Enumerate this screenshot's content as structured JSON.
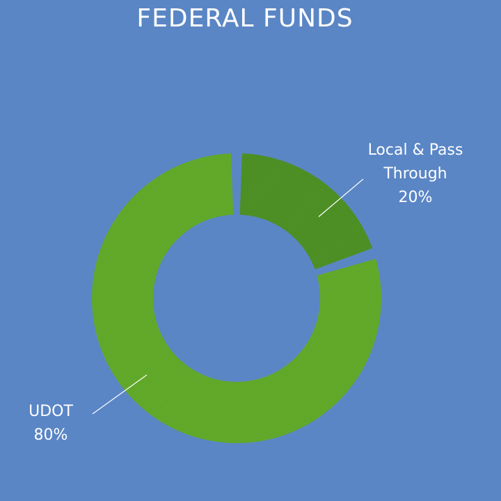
{
  "chart_data": {
    "type": "pie",
    "title": "FEDERAL FUNDS",
    "donut": true,
    "categories": [
      "Local & Pass Through",
      "UDOT"
    ],
    "values": [
      20,
      80
    ],
    "unit": "%",
    "colors": [
      "#4e9125",
      "#62ab2a"
    ],
    "labels": [
      {
        "lines": [
          "Local & Pass",
          "Through"
        ],
        "value": "20%"
      },
      {
        "lines": [
          "UDOT"
        ],
        "value": "80%"
      }
    ],
    "legend": "none"
  },
  "colors": {
    "background": "#5a86c5",
    "text": "#ffffff"
  }
}
